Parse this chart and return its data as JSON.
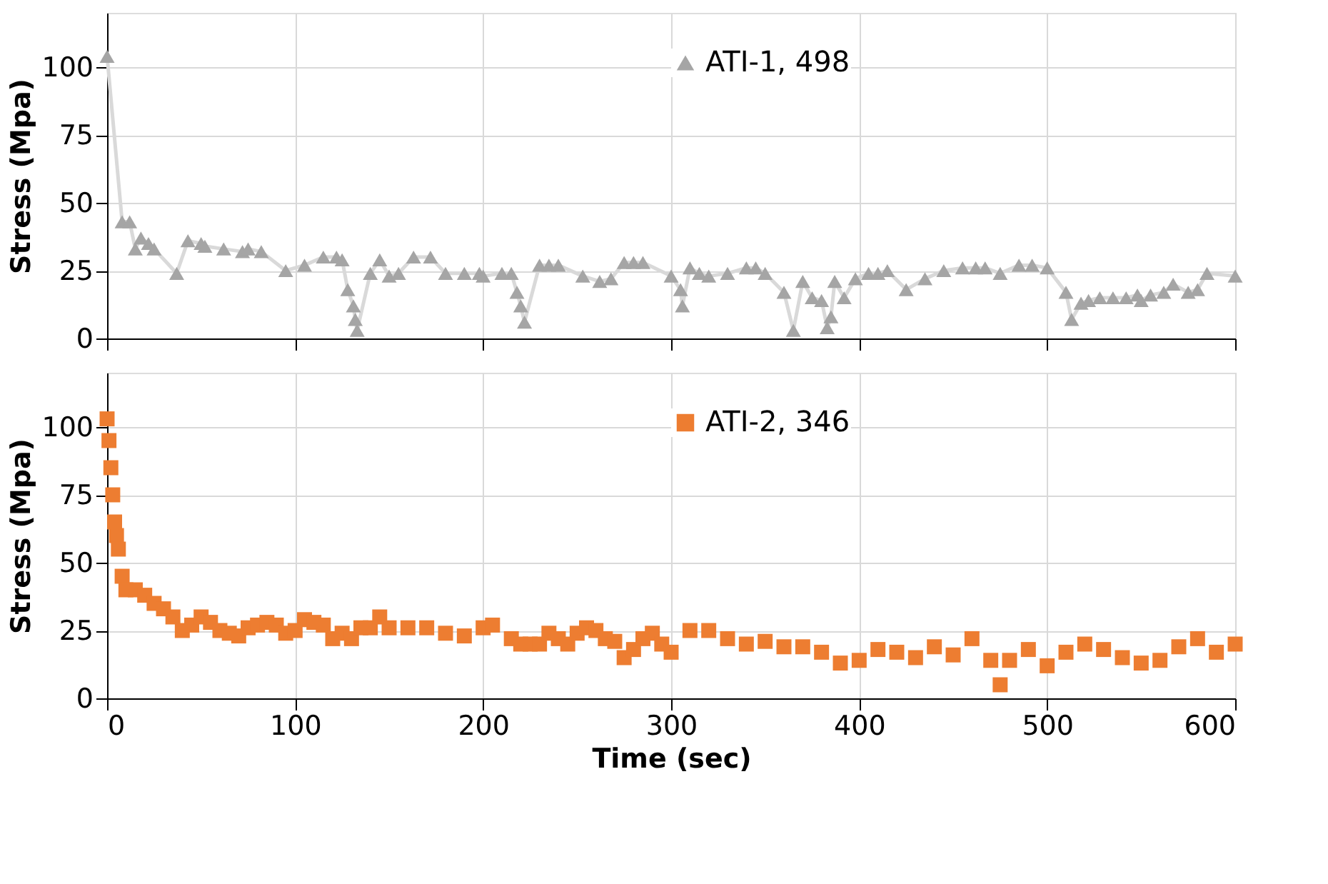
{
  "chart_data": [
    {
      "type": "line",
      "ylabel": "Stress (Mpa)",
      "xlim": [
        0,
        600
      ],
      "xticks": [
        0,
        100,
        200,
        300,
        400,
        500,
        600
      ],
      "ylim": [
        0,
        120
      ],
      "yticks": [
        0,
        25,
        50,
        75,
        100
      ],
      "grid": true,
      "legend": "top right",
      "tick_labels": "y",
      "marker": "triangle",
      "line_style": "solid",
      "series": [
        {
          "name": "ATI-1, 498",
          "color": "#a5a5a5",
          "x": [
            0,
            8,
            12,
            15,
            18,
            22,
            25,
            37,
            43,
            50,
            52,
            62,
            72,
            75,
            82,
            95,
            105,
            115,
            122,
            125,
            128,
            131,
            132,
            133,
            140,
            145,
            150,
            155,
            163,
            172,
            180,
            190,
            198,
            200,
            210,
            215,
            218,
            220,
            222,
            230,
            235,
            240,
            253,
            262,
            268,
            275,
            280,
            285,
            300,
            305,
            306,
            310,
            315,
            320,
            330,
            340,
            345,
            350,
            360,
            365,
            370,
            375,
            380,
            383,
            385,
            387,
            392,
            398,
            405,
            410,
            415,
            425,
            435,
            445,
            455,
            462,
            467,
            475,
            485,
            492,
            500,
            510,
            513,
            518,
            522,
            528,
            535,
            542,
            548,
            550,
            555,
            562,
            567,
            575,
            580,
            585,
            600
          ],
          "values": [
            104,
            43,
            43,
            33,
            37,
            35,
            33,
            24,
            36,
            35,
            34,
            33,
            32,
            33,
            32,
            25,
            27,
            30,
            30,
            29,
            18,
            12,
            7,
            3,
            24,
            29,
            23,
            24,
            30,
            30,
            24,
            24,
            24,
            23,
            24,
            24,
            17,
            12,
            6,
            27,
            27,
            27,
            23,
            21,
            22,
            28,
            28,
            28,
            23,
            18,
            12,
            26,
            24,
            23,
            24,
            26,
            26,
            24,
            17,
            3,
            21,
            15,
            14,
            4,
            8,
            21,
            15,
            22,
            24,
            24,
            25,
            18,
            22,
            25,
            26,
            26,
            26,
            24,
            27,
            27,
            26,
            17,
            7,
            13,
            14,
            15,
            15,
            15,
            16,
            14,
            16,
            17,
            20,
            17,
            18,
            24,
            23
          ]
        }
      ]
    },
    {
      "type": "scatter",
      "xlabel": "Time (sec)",
      "ylabel": "Stress (Mpa)",
      "xlim": [
        0,
        600
      ],
      "xticks": [
        0,
        100,
        200,
        300,
        400,
        500,
        600
      ],
      "ylim": [
        0,
        120
      ],
      "yticks": [
        0,
        25,
        50,
        75,
        100
      ],
      "grid": true,
      "legend": "top right",
      "marker": "square",
      "series": [
        {
          "name": "ATI-2, 346",
          "color": "#ed7d31",
          "x": [
            0,
            1,
            2,
            3,
            4,
            5,
            6,
            8,
            10,
            15,
            20,
            25,
            30,
            35,
            40,
            45,
            50,
            55,
            60,
            65,
            70,
            75,
            80,
            85,
            90,
            95,
            100,
            105,
            110,
            115,
            120,
            125,
            130,
            135,
            140,
            145,
            150,
            160,
            170,
            180,
            190,
            200,
            205,
            215,
            220,
            225,
            230,
            235,
            240,
            245,
            250,
            255,
            260,
            265,
            270,
            275,
            280,
            285,
            290,
            295,
            300,
            310,
            320,
            330,
            340,
            350,
            360,
            370,
            380,
            390,
            400,
            410,
            420,
            430,
            440,
            450,
            460,
            470,
            475,
            480,
            490,
            500,
            510,
            520,
            530,
            540,
            550,
            560,
            570,
            580,
            590,
            600
          ],
          "values": [
            103,
            95,
            85,
            75,
            65,
            60,
            55,
            45,
            40,
            40,
            38,
            35,
            33,
            30,
            25,
            27,
            30,
            28,
            25,
            24,
            23,
            26,
            27,
            28,
            27,
            24,
            25,
            29,
            28,
            27,
            22,
            24,
            22,
            26,
            26,
            30,
            26,
            26,
            26,
            24,
            23,
            26,
            27,
            22,
            20,
            20,
            20,
            24,
            22,
            20,
            24,
            26,
            25,
            22,
            21,
            15,
            18,
            22,
            24,
            20,
            17,
            25,
            25,
            22,
            20,
            21,
            19,
            19,
            17,
            13,
            14,
            18,
            17,
            15,
            19,
            16,
            22,
            14,
            5,
            14,
            18,
            12,
            17,
            20,
            18,
            15,
            13,
            14,
            19,
            22,
            17,
            20
          ]
        }
      ]
    }
  ]
}
